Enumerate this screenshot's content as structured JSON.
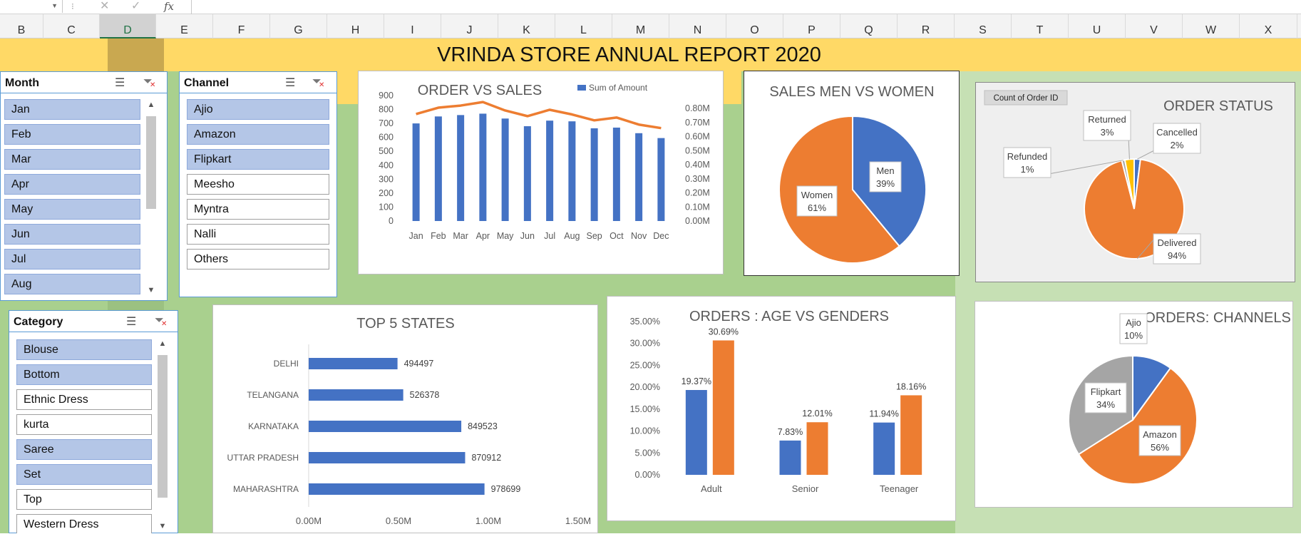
{
  "formula_bar": {
    "fx": "fx"
  },
  "columns": [
    "B",
    "C",
    "D",
    "E",
    "F",
    "G",
    "H",
    "I",
    "J",
    "K",
    "L",
    "M",
    "N",
    "O",
    "P",
    "Q",
    "R",
    "S",
    "T",
    "U",
    "V",
    "W",
    "X"
  ],
  "selected_column": "D",
  "report_title": "VRINDA STORE ANNUAL REPORT 2020",
  "slicers": {
    "month": {
      "title": "Month",
      "items": [
        {
          "label": "Jan",
          "selected": true
        },
        {
          "label": "Feb",
          "selected": true
        },
        {
          "label": "Mar",
          "selected": true
        },
        {
          "label": "Apr",
          "selected": true
        },
        {
          "label": "May",
          "selected": true
        },
        {
          "label": "Jun",
          "selected": true
        },
        {
          "label": "Jul",
          "selected": true
        },
        {
          "label": "Aug",
          "selected": true
        }
      ]
    },
    "channel": {
      "title": "Channel",
      "items": [
        {
          "label": "Ajio",
          "selected": true
        },
        {
          "label": "Amazon",
          "selected": true
        },
        {
          "label": "Flipkart",
          "selected": true
        },
        {
          "label": "Meesho",
          "selected": false
        },
        {
          "label": "Myntra",
          "selected": false
        },
        {
          "label": "Nalli",
          "selected": false
        },
        {
          "label": "Others",
          "selected": false
        }
      ]
    },
    "category": {
      "title": "Category",
      "items": [
        {
          "label": "Blouse",
          "selected": true
        },
        {
          "label": "Bottom",
          "selected": true
        },
        {
          "label": "Ethnic Dress",
          "selected": false
        },
        {
          "label": "kurta",
          "selected": false
        },
        {
          "label": "Saree",
          "selected": true
        },
        {
          "label": "Set",
          "selected": true
        },
        {
          "label": "Top",
          "selected": false
        },
        {
          "label": "Western Dress",
          "selected": false
        }
      ]
    }
  },
  "chart_data": [
    {
      "id": "order-vs-sales",
      "type": "bar",
      "title": "ORDER VS SALES",
      "legend": "Sum of Amount",
      "categories": [
        "Jan",
        "Feb",
        "Mar",
        "Apr",
        "May",
        "Jun",
        "Jul",
        "Aug",
        "Sep",
        "Oct",
        "Nov",
        "Dec"
      ],
      "left_ticks": [
        "900",
        "800",
        "700",
        "600",
        "500",
        "400",
        "300",
        "200",
        "100",
        "0"
      ],
      "right_ticks": [
        "0.80M",
        "0.70M",
        "0.60M",
        "0.50M",
        "0.40M",
        "0.30M",
        "0.20M",
        "0.10M",
        "0.00M"
      ],
      "series": [
        {
          "name": "Sum of Amount",
          "type": "bar",
          "axis": "left",
          "values": [
            700,
            750,
            760,
            770,
            735,
            680,
            720,
            715,
            665,
            670,
            630,
            595
          ]
        },
        {
          "name": "",
          "type": "line",
          "axis": "right",
          "values": [
            0.76,
            0.805,
            0.82,
            0.845,
            0.785,
            0.745,
            0.79,
            0.757,
            0.715,
            0.735,
            0.685,
            0.66
          ]
        }
      ],
      "ylim_left": [
        0,
        900
      ],
      "ylim_right": [
        0,
        0.8
      ]
    },
    {
      "id": "sales-men-women",
      "type": "pie",
      "title": "SALES  MEN VS WOMEN",
      "slices": [
        {
          "label": "Men",
          "pct_label": "39%",
          "value": 39,
          "color": "#4472c4"
        },
        {
          "label": "Women",
          "pct_label": "61%",
          "value": 61,
          "color": "#ed7d31"
        }
      ]
    },
    {
      "id": "order-status",
      "type": "pie",
      "title": "ORDER STATUS",
      "field_button": "Count of Order ID",
      "slices": [
        {
          "label": "Cancelled",
          "pct_label": "2%",
          "value": 2,
          "color": "#4472c4"
        },
        {
          "label": "Delivered",
          "pct_label": "94%",
          "value": 94,
          "color": "#ed7d31"
        },
        {
          "label": "Refunded",
          "pct_label": "1%",
          "value": 1,
          "color": "#a5a5a5"
        },
        {
          "label": "Returned",
          "pct_label": "3%",
          "value": 3,
          "color": "#ffc000"
        }
      ]
    },
    {
      "id": "top-5-states",
      "type": "bar",
      "orientation": "horizontal",
      "title": "TOP 5 STATES",
      "categories": [
        "DELHI",
        "TELANGANA",
        "KARNATAKA",
        "UTTAR PRADESH",
        "MAHARASHTRA"
      ],
      "values": [
        494497,
        526378,
        849523,
        870912,
        978699
      ],
      "x_ticks": [
        "0.00M",
        "0.50M",
        "1.00M",
        "1.50M"
      ],
      "xlim": [
        0,
        1500000
      ]
    },
    {
      "id": "orders-age-genders",
      "type": "bar",
      "title": "ORDERS : AGE VS GENDERS",
      "categories": [
        "Adult",
        "Senior",
        "Teenager"
      ],
      "series": [
        {
          "name": "",
          "color": "#4472c4",
          "values": [
            19.37,
            7.83,
            11.94
          ],
          "labels": [
            "19.37%",
            "7.83%",
            "11.94%"
          ]
        },
        {
          "name": "",
          "color": "#ed7d31",
          "values": [
            30.69,
            12.01,
            18.16
          ],
          "labels": [
            "30.69%",
            "12.01%",
            "18.16%"
          ]
        }
      ],
      "y_ticks": [
        "35.00%",
        "30.00%",
        "25.00%",
        "20.00%",
        "15.00%",
        "10.00%",
        "5.00%",
        "0.00%"
      ],
      "ylim": [
        0,
        35
      ]
    },
    {
      "id": "orders-channels",
      "type": "pie",
      "title": "ORDERS: CHANNELS",
      "slices": [
        {
          "label": "Ajio",
          "pct_label": "10%",
          "value": 10,
          "color": "#4472c4"
        },
        {
          "label": "Amazon",
          "pct_label": "56%",
          "value": 56,
          "color": "#ed7d31"
        },
        {
          "label": "Flipkart",
          "pct_label": "34%",
          "value": 34,
          "color": "#a5a5a5"
        }
      ]
    }
  ]
}
